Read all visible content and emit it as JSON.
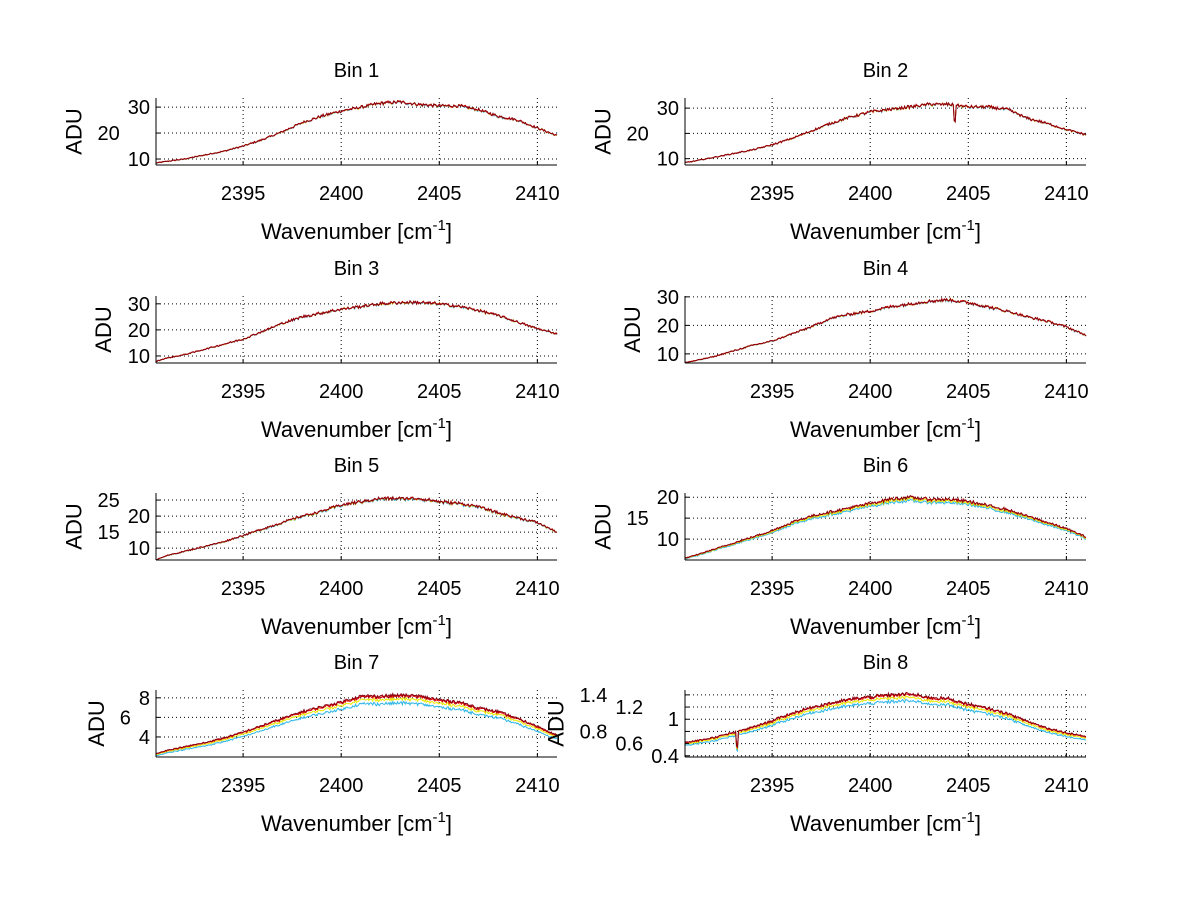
{
  "chart_data": [
    {
      "type": "line",
      "title": "Bin 1",
      "xlabel": "Wavenumber [cm",
      "xlabel_sup": "-1",
      "xlabel_end": "]",
      "ylabel": "ADU",
      "xlim": [
        2390.56,
        2411.0
      ],
      "ylim": [
        7.7,
        33.5
      ],
      "xticks": [
        2395,
        2400,
        2405,
        2410
      ],
      "yticks": [
        10,
        20,
        30
      ],
      "ytick_labels": [
        "10",
        "20",
        "30"
      ],
      "grid": true,
      "x": [
        2390.6,
        2391,
        2392,
        2393,
        2394,
        2395,
        2396,
        2397,
        2398,
        2399,
        2400,
        2401,
        2402,
        2403,
        2404,
        2405,
        2406,
        2407,
        2408,
        2409,
        2410,
        2411
      ],
      "profile": [
        8.5,
        9,
        10,
        11.5,
        13,
        15,
        17.5,
        20.5,
        24,
        26.5,
        28.5,
        30,
        31.5,
        32,
        31,
        30.5,
        30.5,
        29,
        26.5,
        25,
        22,
        19
      ],
      "dips": [],
      "series": [
        {
          "name": "s1",
          "color": "#2bb5e8",
          "scale": 0.995
        },
        {
          "name": "s2",
          "color": "#e8e800",
          "scale": 0.998
        },
        {
          "name": "s3",
          "color": "#e00000",
          "scale": 1.0
        },
        {
          "name": "s4",
          "color": "#8a0010",
          "scale": 1.0
        }
      ]
    },
    {
      "type": "line",
      "title": "Bin 2",
      "xlabel": "Wavenumber [cm",
      "xlabel_sup": "-1",
      "xlabel_end": "]",
      "ylabel": "ADU",
      "xlim": [
        2390.56,
        2411.0
      ],
      "ylim": [
        7.5,
        34
      ],
      "xticks": [
        2395,
        2400,
        2405,
        2410
      ],
      "yticks": [
        10,
        20,
        30
      ],
      "ytick_labels": [
        "10",
        "20",
        "30"
      ],
      "grid": true,
      "x": [
        2390.6,
        2391,
        2392,
        2393,
        2394,
        2395,
        2396,
        2397,
        2398,
        2399,
        2400,
        2401,
        2402,
        2403,
        2404,
        2405,
        2406,
        2407,
        2408,
        2409,
        2410,
        2411
      ],
      "profile": [
        8.5,
        9,
        10.5,
        12,
        13.5,
        15.5,
        18,
        21,
        24,
        26.5,
        28.5,
        29.5,
        30.5,
        31.5,
        31.5,
        30.5,
        30.5,
        29.5,
        26,
        24,
        21.5,
        19.5
      ],
      "dips": [
        [
          2404.3,
          6
        ]
      ],
      "series": [
        {
          "name": "s1",
          "color": "#2bb5e8",
          "scale": 0.995
        },
        {
          "name": "s2",
          "color": "#e8e800",
          "scale": 0.998
        },
        {
          "name": "s3",
          "color": "#e00000",
          "scale": 1.0
        },
        {
          "name": "s4",
          "color": "#8a0010",
          "scale": 1.0
        }
      ]
    },
    {
      "type": "line",
      "title": "Bin 3",
      "xlabel": "Wavenumber [cm",
      "xlabel_sup": "-1",
      "xlabel_end": "]",
      "ylabel": "ADU",
      "xlim": [
        2390.56,
        2411.0
      ],
      "ylim": [
        7.3,
        33
      ],
      "xticks": [
        2395,
        2400,
        2405,
        2410
      ],
      "yticks": [
        10,
        20,
        30
      ],
      "ytick_labels": [
        "10",
        "20",
        "30"
      ],
      "grid": true,
      "x": [
        2390.6,
        2391,
        2392,
        2393,
        2394,
        2395,
        2396,
        2397,
        2398,
        2399,
        2400,
        2401,
        2402,
        2403,
        2404,
        2405,
        2406,
        2407,
        2408,
        2409,
        2410,
        2411
      ],
      "profile": [
        8,
        9,
        10.5,
        12.5,
        14.5,
        16.5,
        19.5,
        22.5,
        25,
        26.5,
        28,
        29,
        30,
        30.5,
        30.5,
        30,
        29,
        27.5,
        25.5,
        23,
        20.5,
        18.5
      ],
      "dips": [],
      "series": [
        {
          "name": "s1",
          "color": "#2bb5e8",
          "scale": 0.995
        },
        {
          "name": "s2",
          "color": "#e8e800",
          "scale": 0.998
        },
        {
          "name": "s3",
          "color": "#e00000",
          "scale": 1.0
        },
        {
          "name": "s4",
          "color": "#8a0010",
          "scale": 1.0
        }
      ]
    },
    {
      "type": "line",
      "title": "Bin 4",
      "xlabel": "Wavenumber [cm",
      "xlabel_sup": "-1",
      "xlabel_end": "]",
      "ylabel": "ADU",
      "xlim": [
        2390.56,
        2411.0
      ],
      "ylim": [
        6.8,
        30.3
      ],
      "xticks": [
        2395,
        2400,
        2405,
        2410
      ],
      "yticks": [
        10,
        20,
        30
      ],
      "ytick_labels": [
        "10",
        "20",
        "30"
      ],
      "grid": true,
      "x": [
        2390.6,
        2391,
        2392,
        2393,
        2394,
        2395,
        2396,
        2397,
        2398,
        2399,
        2400,
        2401,
        2402,
        2403,
        2404,
        2405,
        2406,
        2407,
        2408,
        2409,
        2410,
        2411
      ],
      "profile": [
        7,
        7.5,
        9,
        11,
        13,
        14.5,
        17,
        19.5,
        22.5,
        24,
        25,
        26.5,
        27.5,
        28.5,
        29,
        28,
        26.5,
        25,
        23,
        21.5,
        19.5,
        16.5
      ],
      "dips": [],
      "series": [
        {
          "name": "s1",
          "color": "#2bb5e8",
          "scale": 0.995
        },
        {
          "name": "s2",
          "color": "#e8e800",
          "scale": 0.998
        },
        {
          "name": "s3",
          "color": "#e00000",
          "scale": 1.0
        },
        {
          "name": "s4",
          "color": "#8a0010",
          "scale": 1.0
        }
      ]
    },
    {
      "type": "line",
      "title": "Bin 5",
      "xlabel": "Wavenumber [cm",
      "xlabel_sup": "-1",
      "xlabel_end": "]",
      "ylabel": "ADU",
      "xlim": [
        2390.56,
        2411.0
      ],
      "ylim": [
        6.3,
        27.2
      ],
      "xticks": [
        2395,
        2400,
        2405,
        2410
      ],
      "yticks": [
        10,
        15,
        20,
        25
      ],
      "ytick_labels": [
        "10",
        "15",
        "20",
        "25"
      ],
      "grid": true,
      "x": [
        2390.6,
        2391,
        2392,
        2393,
        2394,
        2395,
        2396,
        2397,
        2398,
        2399,
        2400,
        2401,
        2402,
        2403,
        2404,
        2405,
        2406,
        2407,
        2408,
        2409,
        2410,
        2411
      ],
      "profile": [
        6.5,
        7.5,
        9,
        10.5,
        12,
        14,
        16,
        18,
        20,
        21.5,
        23.5,
        24.5,
        25.5,
        25.5,
        25.5,
        24.5,
        24,
        23,
        21,
        19.5,
        18,
        15
      ],
      "dips": [],
      "series": [
        {
          "name": "s1",
          "color": "#2bb5e8",
          "scale": 0.99
        },
        {
          "name": "s2",
          "color": "#e8e800",
          "scale": 0.995
        },
        {
          "name": "s3",
          "color": "#e00000",
          "scale": 1.0
        },
        {
          "name": "s4",
          "color": "#8a0010",
          "scale": 1.0
        }
      ]
    },
    {
      "type": "line",
      "title": "Bin 6",
      "xlabel": "Wavenumber [cm",
      "xlabel_sup": "-1",
      "xlabel_end": "]",
      "ylabel": "ADU",
      "xlim": [
        2390.56,
        2411.0
      ],
      "ylim": [
        5,
        21
      ],
      "xticks": [
        2395,
        2400,
        2405,
        2410
      ],
      "yticks": [
        10,
        15,
        20
      ],
      "ytick_labels": [
        "10",
        "15",
        "20"
      ],
      "grid": true,
      "x": [
        2390.6,
        2391,
        2392,
        2393,
        2394,
        2395,
        2396,
        2397,
        2398,
        2399,
        2400,
        2401,
        2402,
        2403,
        2404,
        2405,
        2406,
        2407,
        2408,
        2409,
        2410,
        2411
      ],
      "profile": [
        5.5,
        6,
        7.5,
        9,
        10.5,
        12,
        14,
        15.5,
        16.5,
        17.5,
        18.5,
        19.5,
        20,
        19.5,
        19.5,
        19,
        18,
        17,
        15.5,
        14,
        12.5,
        10.5
      ],
      "dips": [],
      "series": [
        {
          "name": "s1",
          "color": "#2bb5e8",
          "scale": 0.96
        },
        {
          "name": "s2",
          "color": "#e8e800",
          "scale": 0.98
        },
        {
          "name": "s3",
          "color": "#e00000",
          "scale": 1.0
        },
        {
          "name": "s4",
          "color": "#8a0010",
          "scale": 1.0
        }
      ]
    },
    {
      "type": "line",
      "title": "Bin 7",
      "xlabel": "Wavenumber [cm",
      "xlabel_sup": "-1",
      "xlabel_end": "]",
      "ylabel": "ADU",
      "xlim": [
        2390.56,
        2411.0
      ],
      "ylim": [
        1.95,
        8.8
      ],
      "xticks": [
        2395,
        2400,
        2405,
        2410
      ],
      "yticks": [
        4,
        6,
        8
      ],
      "ytick_labels": [
        "4",
        "6",
        "8"
      ],
      "grid": true,
      "x": [
        2390.6,
        2391,
        2392,
        2393,
        2394,
        2395,
        2396,
        2397,
        2398,
        2399,
        2400,
        2401,
        2402,
        2403,
        2404,
        2405,
        2406,
        2407,
        2408,
        2409,
        2410,
        2411
      ],
      "profile": [
        2.3,
        2.6,
        3.0,
        3.4,
        3.9,
        4.5,
        5.2,
        5.9,
        6.6,
        7.1,
        7.6,
        8.2,
        8.2,
        8.3,
        8.2,
        7.8,
        7.6,
        7.0,
        6.6,
        5.9,
        5.1,
        4.2
      ],
      "dips": [],
      "series": [
        {
          "name": "s1",
          "color": "#2bb5e8",
          "scale": 0.9
        },
        {
          "name": "s2",
          "color": "#e8e800",
          "scale": 0.95
        },
        {
          "name": "s3",
          "color": "#e00000",
          "scale": 0.985
        },
        {
          "name": "s4",
          "color": "#8a0010",
          "scale": 1.0
        }
      ]
    },
    {
      "type": "line",
      "title": "Bin 8",
      "xlabel": "Wavenumber [cm",
      "xlabel_sup": "-1",
      "xlabel_end": "]",
      "ylabel": "ADU",
      "xlim": [
        2390.56,
        2411.0
      ],
      "ylim": [
        0.38,
        1.48
      ],
      "xticks": [
        2395,
        2400,
        2405,
        2410
      ],
      "yticks": [
        0.4,
        0.6,
        0.8,
        1,
        1.2,
        1.4
      ],
      "ytick_labels": [
        "0.4",
        "0.6",
        "0.8",
        "1",
        "1.2",
        "1.4"
      ],
      "grid": true,
      "x": [
        2390.6,
        2391,
        2392,
        2393,
        2394,
        2395,
        2396,
        2397,
        2398,
        2399,
        2400,
        2401,
        2402,
        2403,
        2404,
        2405,
        2406,
        2407,
        2408,
        2409,
        2410,
        2411
      ],
      "profile": [
        0.62,
        0.64,
        0.7,
        0.78,
        0.87,
        0.98,
        1.1,
        1.2,
        1.27,
        1.33,
        1.37,
        1.4,
        1.42,
        1.36,
        1.34,
        1.25,
        1.18,
        1.1,
        0.97,
        0.86,
        0.78,
        0.72
      ],
      "dips": [
        [
          2393.2,
          0.25
        ]
      ],
      "series": [
        {
          "name": "s1",
          "color": "#2bb5e8",
          "scale": 0.92
        },
        {
          "name": "s2",
          "color": "#e8e800",
          "scale": 0.96
        },
        {
          "name": "s3",
          "color": "#e00000",
          "scale": 0.99
        },
        {
          "name": "s4",
          "color": "#8a0010",
          "scale": 1.0
        }
      ]
    }
  ]
}
